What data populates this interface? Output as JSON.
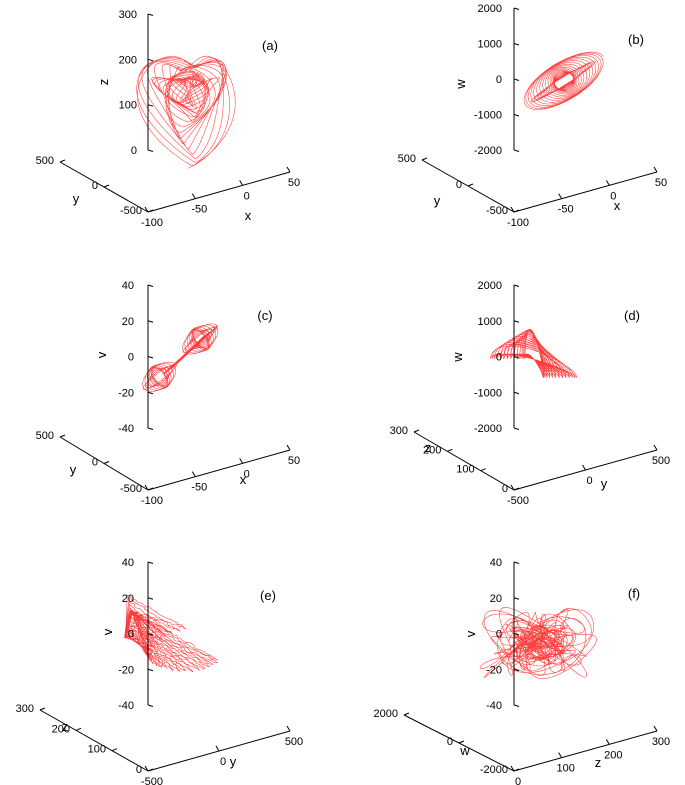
{
  "chart_data": [
    {
      "type": "line",
      "panel_label": "(a)",
      "axes": {
        "vertical": {
          "name": "z",
          "range": [
            0,
            300
          ],
          "ticks": [
            "300",
            "200",
            "100",
            "0"
          ]
        },
        "depth": {
          "name": "y",
          "range": [
            -500,
            500
          ],
          "ticks": [
            "500",
            "0",
            "-500"
          ]
        },
        "horizontal": {
          "name": "x",
          "range": [
            -100,
            50
          ],
          "ticks": [
            "-100",
            "-50",
            "0",
            "50"
          ]
        }
      }
    },
    {
      "type": "line",
      "panel_label": "(b)",
      "axes": {
        "vertical": {
          "name": "w",
          "range": [
            -2000,
            2000
          ],
          "ticks": [
            "2000",
            "1000",
            "0",
            "-1000",
            "-2000"
          ]
        },
        "depth": {
          "name": "y",
          "range": [
            -500,
            500
          ],
          "ticks": [
            "500",
            "0",
            "-500"
          ]
        },
        "horizontal": {
          "name": "x",
          "range": [
            -100,
            50
          ],
          "ticks": [
            "-100",
            "-50",
            "0",
            "50"
          ]
        }
      }
    },
    {
      "type": "line",
      "panel_label": "(c)",
      "axes": {
        "vertical": {
          "name": "v",
          "range": [
            -40,
            40
          ],
          "ticks": [
            "40",
            "20",
            "0",
            "-20",
            "-40"
          ]
        },
        "depth": {
          "name": "y",
          "range": [
            -500,
            500
          ],
          "ticks": [
            "500",
            "0",
            "-500"
          ]
        },
        "horizontal": {
          "name": "x",
          "range": [
            -100,
            50
          ],
          "ticks": [
            "-100",
            "-50",
            "0",
            "50"
          ]
        }
      }
    },
    {
      "type": "line",
      "panel_label": "(d)",
      "axes": {
        "vertical": {
          "name": "w",
          "range": [
            -2000,
            2000
          ],
          "ticks": [
            "2000",
            "1000",
            "0",
            "-1000",
            "-2000"
          ]
        },
        "depth": {
          "name": "z",
          "range": [
            0,
            300
          ],
          "ticks": [
            "300",
            "200",
            "100",
            "0"
          ]
        },
        "horizontal": {
          "name": "y",
          "range": [
            -500,
            500
          ],
          "ticks": [
            "-500",
            "0",
            "500"
          ]
        }
      }
    },
    {
      "type": "line",
      "panel_label": "(e)",
      "axes": {
        "vertical": {
          "name": "v",
          "range": [
            -40,
            40
          ],
          "ticks": [
            "40",
            "20",
            "0",
            "-20",
            "-40"
          ]
        },
        "depth": {
          "name": "z",
          "range": [
            0,
            300
          ],
          "ticks": [
            "300",
            "200",
            "100",
            "0"
          ]
        },
        "horizontal": {
          "name": "y",
          "range": [
            -500,
            500
          ],
          "ticks": [
            "-500",
            "0",
            "500"
          ]
        }
      }
    },
    {
      "type": "line",
      "panel_label": "(f)",
      "axes": {
        "vertical": {
          "name": "v",
          "range": [
            -40,
            40
          ],
          "ticks": [
            "40",
            "20",
            "0",
            "-20",
            "-40"
          ]
        },
        "depth": {
          "name": "w",
          "range": [
            -2000,
            2000
          ],
          "ticks": [
            "2000",
            "0",
            "-2000"
          ]
        },
        "horizontal": {
          "name": "z",
          "range": [
            0,
            300
          ],
          "ticks": [
            "0",
            "100",
            "200",
            "300"
          ]
        }
      }
    }
  ],
  "colors": {
    "trajectory": "#ff1a1a",
    "axes": "#000000",
    "background": "#ffffff"
  }
}
